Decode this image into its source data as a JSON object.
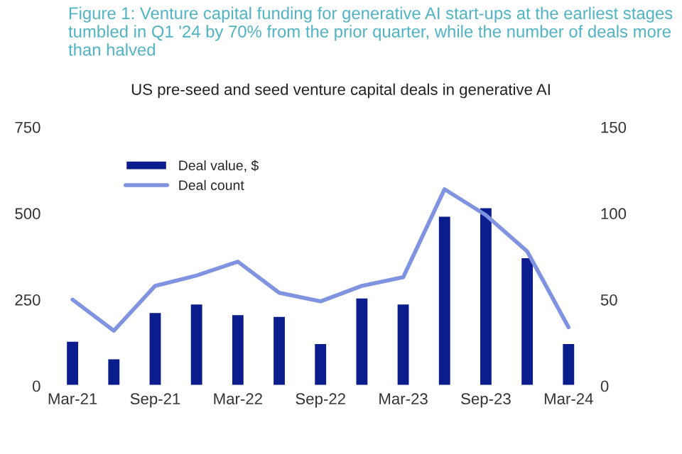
{
  "chart_data": {
    "type": "bar",
    "title": "Figure 1: Venture capital funding for generative AI start-ups at the earliest stages tumbled in Q1 '24 by 70% from the prior quarter, while the number of deals more than halved",
    "subtitle": "US pre-seed and seed venture capital deals in generative AI",
    "categories": [
      "Mar-21",
      null,
      "Sep-21",
      null,
      "Mar-22",
      null,
      "Sep-22",
      null,
      "Mar-23",
      null,
      "Sep-23",
      null,
      "Mar-24"
    ],
    "series": [
      {
        "name": "Deal value, $",
        "color": "#0b1c8c",
        "values": [
          131,
          80,
          214,
          239,
          208,
          203,
          124,
          256,
          239,
          493,
          518,
          373,
          124
        ]
      },
      {
        "name": "Deal count",
        "type": "line",
        "axis": "y2",
        "color": "#7f93e0",
        "values": [
          50,
          32,
          58,
          64,
          72,
          54,
          49,
          58,
          63,
          114,
          99,
          78,
          34
        ]
      }
    ],
    "ylim": [
      0,
      750
    ],
    "yticks": [
      0,
      250,
      500,
      750
    ],
    "y2lim": [
      0,
      150
    ],
    "y2ticks": [
      0,
      50,
      100,
      150
    ],
    "legend": "top left",
    "grid": false
  }
}
